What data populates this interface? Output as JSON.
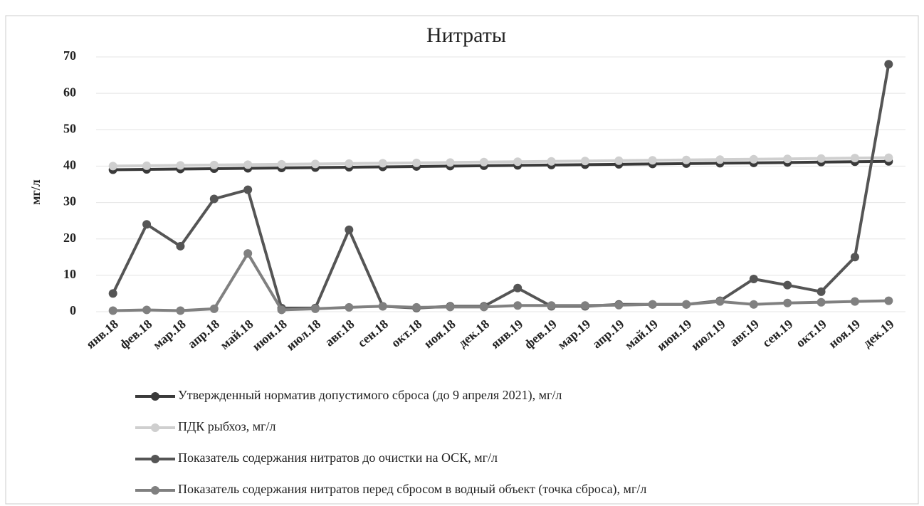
{
  "chart_data": {
    "type": "line",
    "title": "Нитраты",
    "y_label": "мг/л",
    "categories": [
      "янв.18",
      "фев.18",
      "мар.18",
      "апр.18",
      "май.18",
      "июн.18",
      "июл.18",
      "авг.18",
      "сен.18",
      "окт.18",
      "ноя.18",
      "дек.18",
      "янв.19",
      "фев.19",
      "мар.19",
      "апр.19",
      "май.19",
      "июн.19",
      "июл.19",
      "авг.19",
      "сен.19",
      "окт.19",
      "ноя.19",
      "дек.19"
    ],
    "series": [
      {
        "name": "Утвержденный норматив допустимого сброса (до 9 апреля 2021),  мг/л",
        "color": "#3a3a3a",
        "values": [
          39,
          39.1,
          39.2,
          39.3,
          39.4,
          39.5,
          39.6,
          39.7,
          39.8,
          39.9,
          40,
          40.1,
          40.2,
          40.3,
          40.4,
          40.5,
          40.6,
          40.7,
          40.8,
          40.9,
          41,
          41.1,
          41.2,
          41.3
        ]
      },
      {
        "name": "ПДК рыбхоз, мг/л",
        "color": "#cfcfcf",
        "values": [
          40,
          40.1,
          40.2,
          40.3,
          40.4,
          40.5,
          40.6,
          40.7,
          40.8,
          40.9,
          41,
          41.1,
          41.2,
          41.3,
          41.4,
          41.5,
          41.6,
          41.7,
          41.8,
          41.9,
          42,
          42.1,
          42.2,
          42.3
        ]
      },
      {
        "name": "Показатель содержания нитратов до очистки на ОСК, мг/л",
        "color": "#555555",
        "values": [
          5,
          24,
          18,
          31,
          33.5,
          1,
          1,
          22.5,
          1.5,
          1,
          1.5,
          1.5,
          6.5,
          1.5,
          1.5,
          2,
          2,
          2,
          3,
          9,
          7.3,
          5.5,
          15,
          68
        ]
      },
      {
        "name": "Показатель содержания нитратов перед сбросом в водный объект (точка сброса), мг/л",
        "color": "#808080",
        "values": [
          0.3,
          0.5,
          0.3,
          0.8,
          16,
          0.5,
          0.8,
          1.2,
          1.5,
          1.2,
          1.3,
          1.3,
          1.7,
          1.7,
          1.7,
          1.8,
          2,
          2,
          2.8,
          2,
          2.4,
          2.6,
          2.8,
          3
        ]
      }
    ],
    "ylim": [
      0,
      70
    ],
    "yticks": [
      0,
      10,
      20,
      30,
      40,
      50,
      60,
      70
    ],
    "grid": true
  }
}
